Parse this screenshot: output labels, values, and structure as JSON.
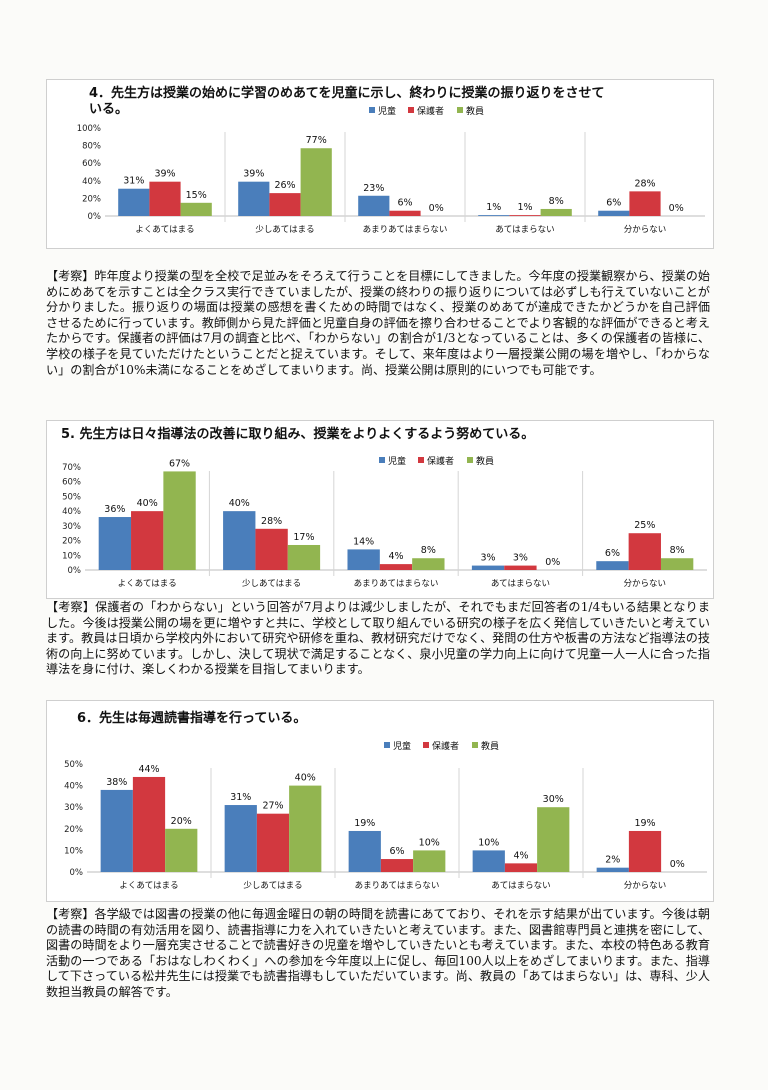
{
  "colors": {
    "児童": "#4a7ebb",
    "保護者": "#d2383f",
    "教員": "#92b550"
  },
  "sections": [
    {
      "title": "4．先生方は授業の始めに学習のめあてを児童に示し、終わりに授業の振り返りをさせている。",
      "commentary": "【考察】昨年度より授業の型を全校で足並みをそろえて行うことを目標にしてきました。今年度の授業観察から、授業の始めにめあてを示すことは全クラス実行できていましたが、授業の終わりの振り返りについては必ずしも行えていないことが分かりました。振り返りの場面は授業の感想を書くための時間ではなく、授業のめあてが達成できたかどうかを自己評価させるために行っています。教師側から見た評価と児童自身の評価を擦り合わせることでより客観的な評価ができると考えたからです。保護者の評価は7月の調査と比べ、「わからない」の割合が1/3となっていることは、多くの保護者の皆様に、学校の様子を見ていただけたということだと捉えています。そして、来年度はより一層授業公開の場を増やし、「わからない」の割合が10%未満になることをめざしてまいります。尚、授業公開は原則的にいつでも可能です。"
    },
    {
      "title": "5. 先生方は日々指導法の改善に取り組み、授業をよりよくするよう努めている。",
      "commentary": "【考察】保護者の「わからない」という回答が7月よりは減少しましたが、それでもまだ回答者の1/4もいる結果となりました。今後は授業公開の場を更に増やすと共に、学校として取り組んでいる研究の様子を広く発信していきたいと考えています。教員は日頃から学校内外において研究や研修を重ね、教材研究だけでなく、発問の仕方や板書の方法など指導法の技術の向上に努めています。しかし、決して現状で満足することなく、泉小児童の学力向上に向けて児童一人一人に合った指導法を身に付け、楽しくわかる授業を目指してまいります。"
    },
    {
      "title": "6．先生は毎週読書指導を行っている。",
      "commentary": "【考察】各学級では図書の授業の他に毎週金曜日の朝の時間を読書にあてており、それを示す結果が出ています。今後は朝の読書の時間の有効活用を図り、読書指導に力を入れていきたいと考えています。また、図書館専門員と連携を密にして、図書の時間をより一層充実させることで読書好きの児童を増やしていきたいとも考えています。また、本校の特色ある教育活動の一つである「おはなしわくわく」への参加を今年度以上に促し、毎回100人以上をめざしてまいります。また、指導して下さっている松井先生には授業でも読書指導もしていただいています。尚、教員の「あてはまらない」は、専科、少人数担当教員の解答です。"
    }
  ],
  "chart_data": [
    {
      "type": "bar",
      "categories": [
        "よくあてはまる",
        "少しあてはまる",
        "あまりあてはまらない",
        "あてはまらない",
        "分からない"
      ],
      "series": [
        {
          "name": "児童",
          "values": [
            31,
            39,
            23,
            1,
            6
          ],
          "labels": [
            "31%",
            "39%",
            "23%",
            "1%",
            "6%"
          ]
        },
        {
          "name": "保護者",
          "values": [
            39,
            26,
            6,
            1,
            28
          ],
          "labels": [
            "39%",
            "26%",
            "6%",
            "1%",
            "28%"
          ]
        },
        {
          "name": "教員",
          "values": [
            15,
            77,
            0,
            8,
            0
          ],
          "labels": [
            "15%",
            "77%",
            "0%",
            "8%",
            "0%"
          ]
        }
      ],
      "ylim": [
        0,
        100
      ],
      "ticks": [
        "0%",
        "20%",
        "40%",
        "60%",
        "80%",
        "100%"
      ],
      "legend": "top-right"
    },
    {
      "type": "bar",
      "categories": [
        "よくあてはまる",
        "少しあてはまる",
        "あまりあてはまらない",
        "あてはまらない",
        "分からない"
      ],
      "series": [
        {
          "name": "児童",
          "values": [
            36,
            40,
            14,
            3,
            6
          ],
          "labels": [
            "36%",
            "40%",
            "14%",
            "3%",
            "6%"
          ]
        },
        {
          "name": "保護者",
          "values": [
            40,
            28,
            4,
            3,
            25
          ],
          "labels": [
            "40%",
            "28%",
            "4%",
            "3%",
            "25%"
          ]
        },
        {
          "name": "教員",
          "values": [
            67,
            17,
            8,
            0,
            8
          ],
          "labels": [
            "67%",
            "17%",
            "8%",
            "0%",
            "8%"
          ]
        }
      ],
      "ylim": [
        0,
        70
      ],
      "ticks": [
        "0%",
        "10%",
        "20%",
        "30%",
        "40%",
        "50%",
        "60%",
        "70%"
      ],
      "legend": "top-right"
    },
    {
      "type": "bar",
      "categories": [
        "よくあてはまる",
        "少しあてはまる",
        "あまりあてはまらない",
        "あてはまらない",
        "分からない"
      ],
      "series": [
        {
          "name": "児童",
          "values": [
            38,
            31,
            19,
            10,
            2
          ],
          "labels": [
            "38%",
            "31%",
            "19%",
            "10%",
            "2%"
          ]
        },
        {
          "name": "保護者",
          "values": [
            44,
            27,
            6,
            4,
            19
          ],
          "labels": [
            "44%",
            "27%",
            "6%",
            "4%",
            "19%"
          ]
        },
        {
          "name": "教員",
          "values": [
            20,
            40,
            10,
            30,
            0
          ],
          "labels": [
            "20%",
            "40%",
            "10%",
            "30%",
            "0%"
          ]
        }
      ],
      "ylim": [
        0,
        50
      ],
      "ticks": [
        "0%",
        "10%",
        "20%",
        "30%",
        "40%",
        "50%"
      ],
      "legend": "top-right"
    }
  ]
}
